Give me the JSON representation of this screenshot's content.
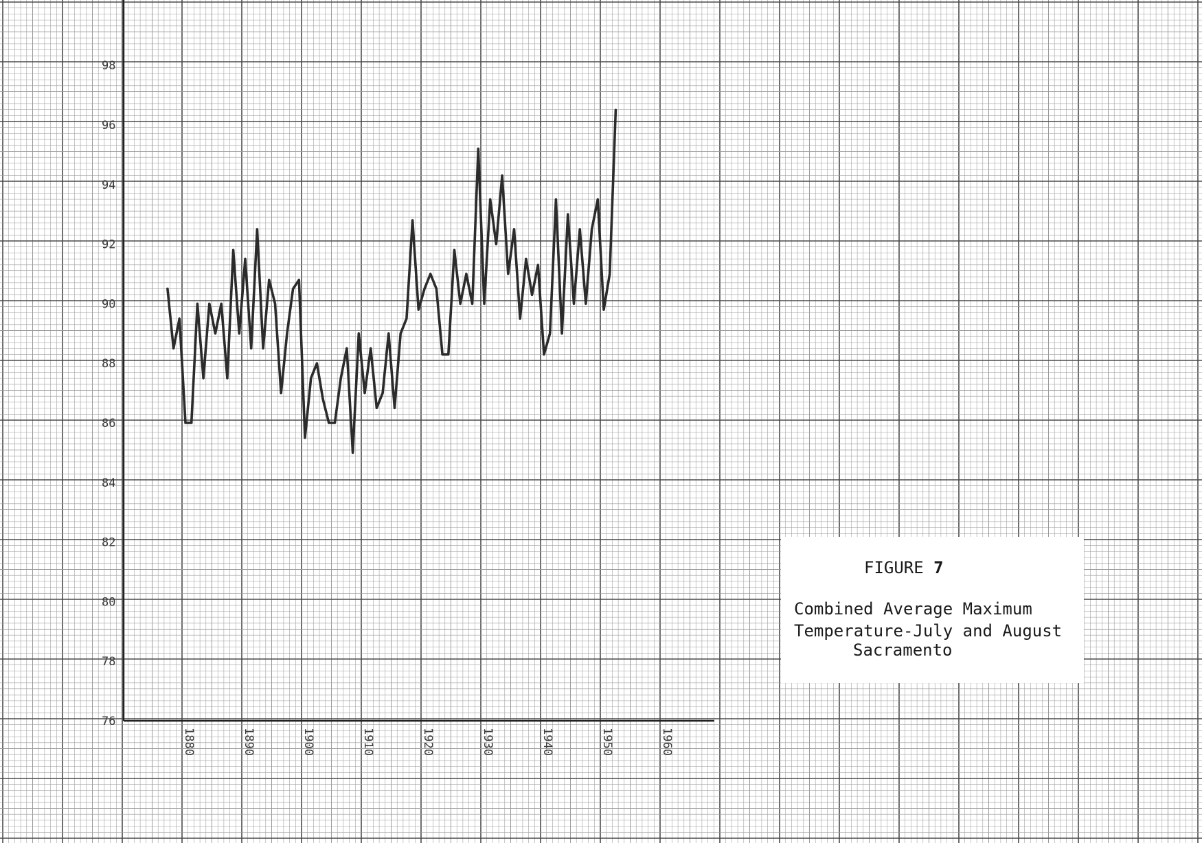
{
  "chart_data": {
    "type": "line",
    "caption": {
      "figure_label": "FIGURE",
      "figure_number": "7",
      "lines": [
        "Combined Average Maximum",
        "Temperature-July and August",
        "Sacramento"
      ]
    },
    "x_ticks": [
      "1880",
      "1890",
      "1900",
      "1910",
      "1920",
      "1930",
      "1940",
      "1950",
      "1960"
    ],
    "y_ticks": [
      "76",
      "78",
      "80",
      "82",
      "84",
      "86",
      "88",
      "90",
      "92",
      "94",
      "96",
      "98"
    ],
    "xlim": [
      1870,
      2040
    ],
    "ylim": [
      76,
      100
    ],
    "grid": true,
    "colors": {
      "grid_major": "#4a4a4a",
      "grid_minor": "#9a9a9a",
      "line": "#2b2b2b",
      "text": "#3a3a3a"
    },
    "series": [
      {
        "x": [
          1877,
          1878,
          1879,
          1880,
          1881,
          1882,
          1883,
          1884,
          1885,
          1886,
          1887,
          1888,
          1889,
          1890,
          1891,
          1892,
          1893,
          1894,
          1895,
          1896,
          1897,
          1898,
          1899,
          1900,
          1901,
          1902,
          1903,
          1904,
          1905,
          1906,
          1907,
          1908,
          1909,
          1910,
          1911,
          1912,
          1913,
          1914,
          1915,
          1916,
          1917,
          1918,
          1919,
          1920,
          1921,
          1922,
          1923,
          1924,
          1925,
          1926,
          1927,
          1928,
          1929,
          1930,
          1931,
          1932,
          1933,
          1934,
          1935,
          1936,
          1937,
          1938,
          1939,
          1940,
          1941,
          1942,
          1943,
          1944,
          1945,
          1946,
          1947,
          1948,
          1949,
          1950,
          1951,
          1952,
          1953,
          1954,
          1955,
          1956,
          1957,
          1958,
          1959,
          1960,
          1961,
          1962,
          1963,
          1964,
          1965
        ],
        "y": [
          90.5,
          88.5,
          89.5,
          86.0,
          86.0,
          90.0,
          87.5,
          90.0,
          89.0,
          90.0,
          87.5,
          91.8,
          89.0,
          91.5,
          88.5,
          92.5,
          88.5,
          90.8,
          90.0,
          87.0,
          89.0,
          90.5,
          90.8,
          85.5,
          87.5,
          88.0,
          86.8,
          86.0,
          86.0,
          87.5,
          88.5,
          85.0,
          89.0,
          87.0,
          88.5,
          86.5,
          87.0,
          89.0,
          86.5,
          89.0,
          89.5,
          92.8,
          89.8,
          90.5,
          91.0,
          90.5,
          88.3,
          88.3,
          91.8,
          90.0,
          91.0,
          90.0,
          95.2,
          90.0,
          93.5,
          92.0,
          94.3,
          91.0,
          92.5,
          89.5,
          91.5,
          90.3,
          91.3,
          88.3,
          89.0,
          93.5,
          89.0,
          93.0,
          90.0,
          92.5,
          90.0,
          92.5,
          93.5,
          89.8,
          91.0,
          96.5,
          null,
          null,
          null,
          null,
          null,
          null,
          null,
          null,
          null,
          null,
          null,
          null,
          null
        ]
      }
    ]
  }
}
